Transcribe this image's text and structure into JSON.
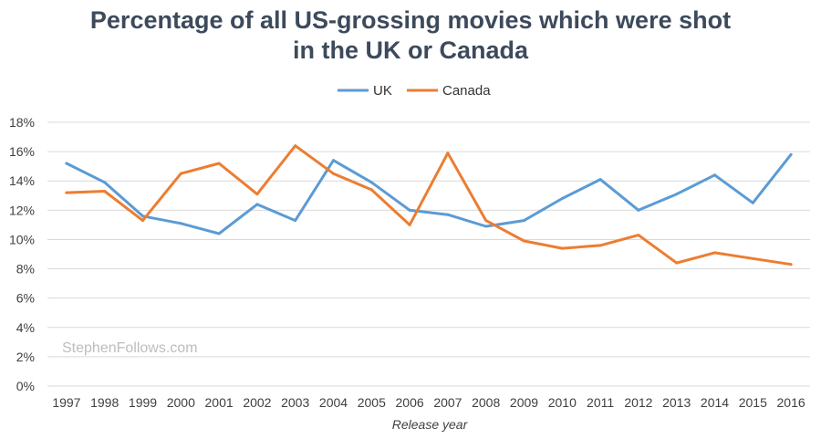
{
  "chart_data": {
    "type": "line",
    "title_lines": [
      "Percentage of all US-grossing movies which were shot",
      "in the UK or Canada"
    ],
    "xlabel": "Release year",
    "ylabel": "",
    "categories": [
      "1997",
      "1998",
      "1999",
      "2000",
      "2001",
      "2002",
      "2003",
      "2004",
      "2005",
      "2006",
      "2007",
      "2008",
      "2009",
      "2010",
      "2011",
      "2012",
      "2013",
      "2014",
      "2015",
      "2016"
    ],
    "series": [
      {
        "name": "UK",
        "color": "#5b9bd5",
        "values": [
          15.2,
          13.9,
          11.6,
          11.1,
          10.4,
          12.4,
          11.3,
          15.4,
          13.9,
          12.0,
          11.7,
          10.9,
          11.3,
          12.8,
          14.1,
          12.0,
          13.1,
          14.4,
          12.5,
          15.8
        ]
      },
      {
        "name": "Canada",
        "color": "#ed7d31",
        "values": [
          13.2,
          13.3,
          11.3,
          14.5,
          15.2,
          13.1,
          16.4,
          14.5,
          13.4,
          11.0,
          15.9,
          11.3,
          9.9,
          9.4,
          9.6,
          10.3,
          8.4,
          9.1,
          8.7,
          8.3
        ]
      }
    ],
    "ylim": [
      0,
      18
    ],
    "yticks": [
      0,
      2,
      4,
      6,
      8,
      10,
      12,
      14,
      16,
      18
    ],
    "ytick_labels": [
      "0%",
      "2%",
      "4%",
      "6%",
      "8%",
      "10%",
      "12%",
      "14%",
      "16%",
      "18%"
    ],
    "grid": true,
    "legend_position": "top-center",
    "watermark": "StephenFollows.com",
    "colors": {
      "title": "#3d4a5c",
      "grid": "#d9d9d9",
      "watermark": "#bdbdbd"
    }
  }
}
